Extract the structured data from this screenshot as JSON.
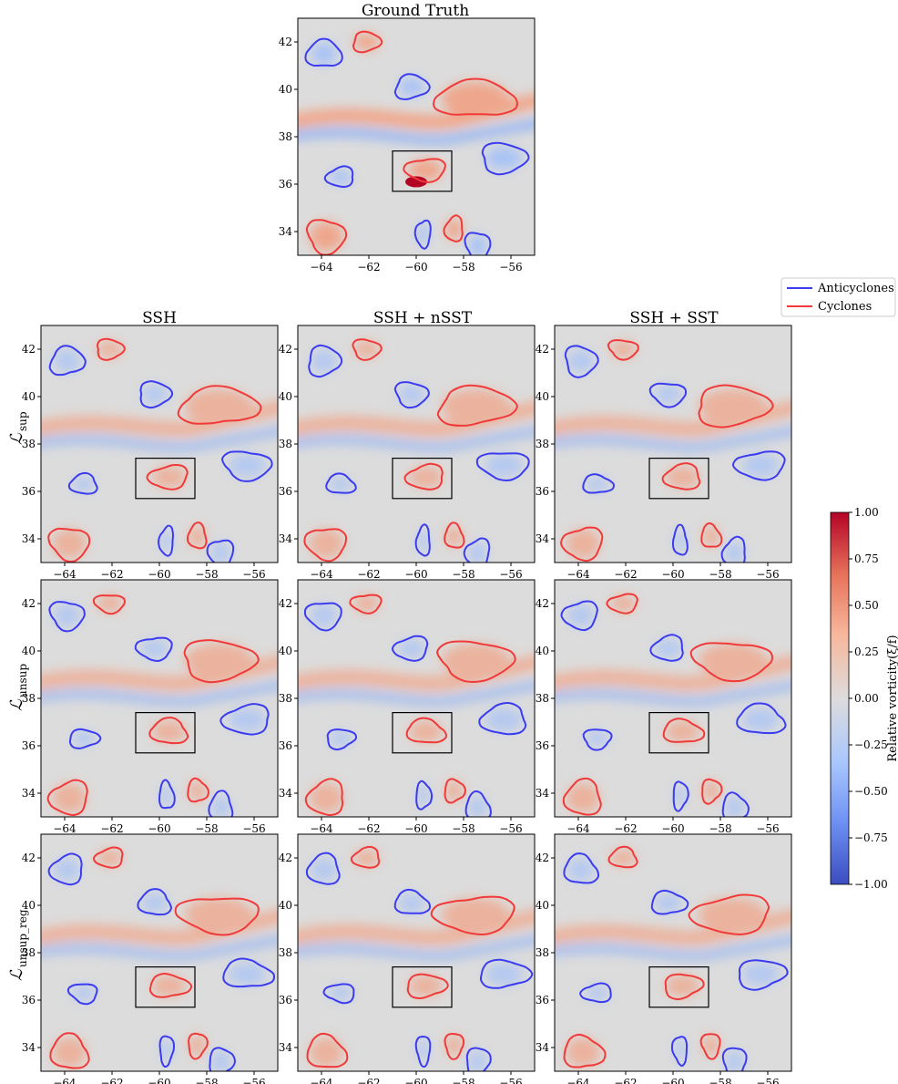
{
  "figure": {
    "panel_titles": {
      "ground_truth": "Ground Truth",
      "col_ssh": "SSH",
      "col_nsst": "SSH + nSST",
      "col_sst": "SSH + SST"
    },
    "row_labels": [
      "ℒ",
      "ℒ",
      "ℒ"
    ],
    "row_label_subs": [
      "sup",
      "unsup",
      "unsup_reg"
    ]
  },
  "legend": {
    "position": "top-right",
    "items": [
      {
        "label": "Anticyclones",
        "color": "#3b3bf0"
      },
      {
        "label": "Cyclones",
        "color": "#f03a3a"
      }
    ]
  },
  "colorbar": {
    "label": "Relative vorticity(ξ/f)",
    "ticks": [
      "1.00",
      "0.75",
      "0.50",
      "0.25",
      "0.00",
      "−0.25",
      "−0.50",
      "−0.75",
      "−1.00"
    ],
    "range": [
      -1.0,
      1.0
    ],
    "colors": [
      "#3b4cc0",
      "#7597f6",
      "#b9d0f9",
      "#dddddd",
      "#f7b79b",
      "#e7745b",
      "#b40426"
    ]
  },
  "chart_data": {
    "type": "heatmap",
    "description_axis": {
      "x_ticks": [
        "−64",
        "−62",
        "−60",
        "−58",
        "−56"
      ],
      "y_ticks": [
        "34",
        "36",
        "38",
        "40",
        "42"
      ],
      "xlim": [
        -65,
        -55
      ],
      "ylim": [
        33,
        43
      ]
    },
    "highlight_box": {
      "lon": [
        -61,
        -58.5
      ],
      "lat": [
        35.7,
        37.4
      ]
    },
    "eddies": {
      "anticyclones": [
        {
          "lon": -63.9,
          "lat": 41.5,
          "rx": 0.7,
          "ry": 0.6
        },
        {
          "lon": -60.2,
          "lat": 40.1,
          "rx": 0.7,
          "ry": 0.5
        },
        {
          "lon": -56.3,
          "lat": 37.1,
          "rx": 1.0,
          "ry": 0.6
        },
        {
          "lon": -57.4,
          "lat": 33.4,
          "rx": 0.5,
          "ry": 0.6
        },
        {
          "lon": -59.7,
          "lat": 33.9,
          "rx": 0.3,
          "ry": 0.6
        },
        {
          "lon": -63.2,
          "lat": 36.3,
          "rx": 0.6,
          "ry": 0.4
        }
      ],
      "cyclones": [
        {
          "lon": -57.5,
          "lat": 39.6,
          "rx": 1.6,
          "ry": 0.8
        },
        {
          "lon": -62.1,
          "lat": 42.0,
          "rx": 0.6,
          "ry": 0.4
        },
        {
          "lon": -63.8,
          "lat": 33.8,
          "rx": 0.8,
          "ry": 0.7
        },
        {
          "lon": -59.6,
          "lat": 36.6,
          "rx": 0.8,
          "ry": 0.5
        },
        {
          "lon": -58.4,
          "lat": 34.1,
          "rx": 0.4,
          "ry": 0.5
        }
      ]
    },
    "panels": [
      {
        "name": "Ground Truth",
        "row": 0,
        "col": 1
      },
      {
        "name": "SSH / L_sup",
        "row": 1,
        "col": 0
      },
      {
        "name": "SSH + nSST / L_sup",
        "row": 1,
        "col": 1
      },
      {
        "name": "SSH + SST / L_sup",
        "row": 1,
        "col": 2
      },
      {
        "name": "SSH / L_unsup",
        "row": 2,
        "col": 0
      },
      {
        "name": "SSH + nSST / L_unsup",
        "row": 2,
        "col": 1
      },
      {
        "name": "SSH + SST / L_unsup",
        "row": 2,
        "col": 2
      },
      {
        "name": "SSH / L_unsup_reg",
        "row": 3,
        "col": 0
      },
      {
        "name": "SSH + nSST / L_unsup_reg",
        "row": 3,
        "col": 1
      },
      {
        "name": "SSH + SST / L_unsup_reg",
        "row": 3,
        "col": 2
      }
    ]
  }
}
